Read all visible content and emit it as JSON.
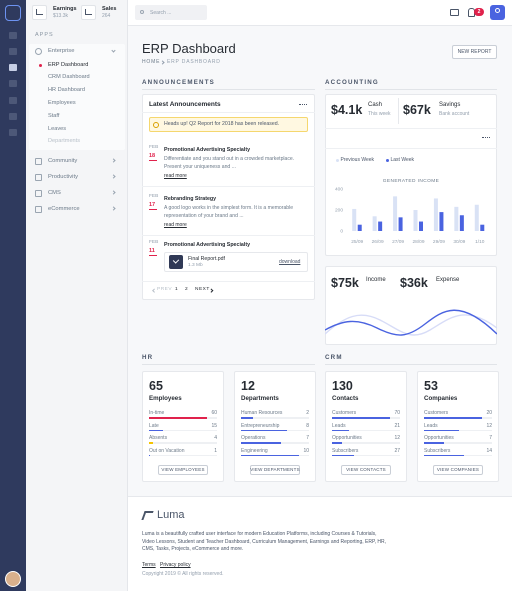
{
  "sidebar": {
    "stats": [
      {
        "label": "Earnings",
        "value": "$13.3k"
      },
      {
        "label": "Sales",
        "value": "264"
      }
    ],
    "section": "APPS",
    "menu": [
      {
        "label": "Enterprise",
        "children": [
          "ERP Dashboard",
          "CRM Dashboard",
          "HR Dashboard",
          "Employees",
          "Staff",
          "Leaves",
          "Departments"
        ]
      },
      {
        "label": "Community"
      },
      {
        "label": "Productivity"
      },
      {
        "label": "CMS"
      },
      {
        "label": "eCommerce"
      }
    ]
  },
  "topbar": {
    "search": "Search ...",
    "badge": "2"
  },
  "header": {
    "title": "ERP Dashboard",
    "breadcrumb": [
      "HOME",
      "ERP DASHBOARD"
    ],
    "button": "NEW REPORT"
  },
  "announcements": {
    "section": "ANNOUNCEMENTS",
    "title": "Latest Announcements",
    "alert": "Heads up! Q2 Report for 2018 has been released.",
    "items": [
      {
        "month": "FEB",
        "day": "18",
        "title": "Promotional Advertising Specialty",
        "text": "Differentiate and you stand out in a crowded marketplace. Present your uniqueness and ...",
        "link": "read more"
      },
      {
        "month": "FEB",
        "day": "17",
        "title": "Rebranding Strategy",
        "text": "A good logo works in the simplest form. It is a memorable representation of your brand and ...",
        "link": "read more"
      },
      {
        "month": "FEB",
        "day": "11",
        "title": "Promotional Advertising Specialty",
        "file": {
          "name": "Final Report.pdf",
          "size": "1.3 Mb",
          "action": "download"
        }
      }
    ],
    "pagination": [
      "PREV",
      "1",
      "2",
      "NEXT"
    ]
  },
  "accounting": {
    "section": "ACCOUNTING",
    "cash": {
      "value": "$4.1k",
      "label": "Cash",
      "sub": "This week"
    },
    "savings": {
      "value": "$67k",
      "label": "Savings",
      "sub": "Bank account"
    },
    "chart": {
      "type": "bar",
      "title": "GENERATED INCOME",
      "categories": [
        "25/09",
        "26/09",
        "27/09",
        "28/09",
        "29/09",
        "30/09",
        "1/10"
      ],
      "series": [
        {
          "name": "Previous Week",
          "color": "#d9e2f5",
          "values": [
            210,
            140,
            330,
            200,
            310,
            230,
            250
          ]
        },
        {
          "name": "Last Week",
          "color": "#4a63e0",
          "values": [
            60,
            90,
            130,
            90,
            180,
            150,
            60
          ]
        }
      ],
      "ylim": [
        0,
        400
      ],
      "yticks": [
        0,
        200,
        400
      ]
    },
    "income": {
      "value": "$75k",
      "label": "Income"
    },
    "expense": {
      "value": "$36k",
      "label": "Expense"
    }
  },
  "hr": {
    "section": "HR",
    "cards": [
      {
        "value": "65",
        "label": "Employees",
        "button": "VIEW EMPLOYEES",
        "rows": [
          {
            "label": "In-time",
            "value": 60,
            "color": "#e0224c"
          },
          {
            "label": "Late",
            "value": 15,
            "color": "#4a63e0"
          },
          {
            "label": "Absents",
            "value": 4,
            "color": "#f5c400"
          },
          {
            "label": "Out on Vacation",
            "value": 1,
            "color": "#4a63e0"
          }
        ]
      },
      {
        "value": "12",
        "label": "Departments",
        "button": "VIEW DEPARTMENTS",
        "rows": [
          {
            "label": "Human Resources",
            "value": 2,
            "color": "#4a63e0"
          },
          {
            "label": "Entrepreneurship",
            "value": 8,
            "color": "#4a63e0"
          },
          {
            "label": "Operations",
            "value": 7,
            "color": "#4a63e0"
          },
          {
            "label": "Engineering",
            "value": 10,
            "color": "#4a63e0"
          }
        ]
      }
    ]
  },
  "crm": {
    "section": "CRM",
    "cards": [
      {
        "value": "130",
        "label": "Contacts",
        "button": "VIEW CONTACTS",
        "rows": [
          {
            "label": "Customers",
            "value": 70,
            "color": "#4a63e0"
          },
          {
            "label": "Leads",
            "value": 21,
            "color": "#4a63e0"
          },
          {
            "label": "Opportunities",
            "value": 12,
            "color": "#4a63e0"
          },
          {
            "label": "Subscribers",
            "value": 27,
            "color": "#4a63e0"
          }
        ]
      },
      {
        "value": "53",
        "label": "Companies",
        "button": "VIEW COMPANIES",
        "rows": [
          {
            "label": "Customers",
            "value": 20,
            "color": "#4a63e0"
          },
          {
            "label": "Leads",
            "value": 12,
            "color": "#4a63e0"
          },
          {
            "label": "Opportunities",
            "value": 7,
            "color": "#4a63e0"
          },
          {
            "label": "Subscribers",
            "value": 14,
            "color": "#4a63e0"
          }
        ]
      }
    ]
  },
  "footer": {
    "brand": "Luma",
    "text": "Luma is a beautifully crafted user interface for modern Education Platforms, including Courses & Tutorials, Video Lessons, Student and Teacher Dashboard, Curriculum Management, Earnings and Reporting, ERP, HR, CMS, Tasks, Projects, eCommerce and more.",
    "links": [
      "Terms",
      "Privacy policy"
    ],
    "copyright": "Copyright 2019 © All rights reserved."
  }
}
